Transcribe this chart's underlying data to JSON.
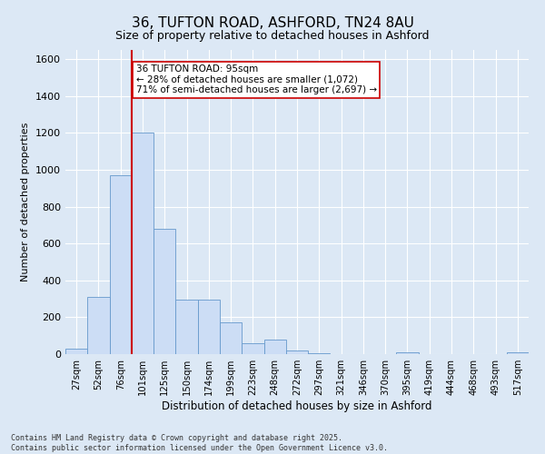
{
  "title_line1": "36, TUFTON ROAD, ASHFORD, TN24 8AU",
  "title_line2": "Size of property relative to detached houses in Ashford",
  "xlabel": "Distribution of detached houses by size in Ashford",
  "ylabel": "Number of detached properties",
  "categories": [
    "27sqm",
    "52sqm",
    "76sqm",
    "101sqm",
    "125sqm",
    "150sqm",
    "174sqm",
    "199sqm",
    "223sqm",
    "248sqm",
    "272sqm",
    "297sqm",
    "321sqm",
    "346sqm",
    "370sqm",
    "395sqm",
    "419sqm",
    "444sqm",
    "468sqm",
    "493sqm",
    "517sqm"
  ],
  "values": [
    30,
    310,
    970,
    1200,
    680,
    295,
    295,
    170,
    60,
    80,
    22,
    5,
    2,
    2,
    2,
    8,
    2,
    2,
    2,
    2,
    8
  ],
  "bar_color": "#ccddf5",
  "bar_edge_color": "#6699cc",
  "vline_color": "#cc0000",
  "vline_x_index": 3.0,
  "annotation_text": "36 TUFTON ROAD: 95sqm\n← 28% of detached houses are smaller (1,072)\n71% of semi-detached houses are larger (2,697) →",
  "annotation_box_color": "#ffffff",
  "annotation_box_edge": "#cc0000",
  "ylim": [
    0,
    1650
  ],
  "yticks": [
    0,
    200,
    400,
    600,
    800,
    1000,
    1200,
    1400,
    1600
  ],
  "background_color": "#dce8f5",
  "grid_color": "#ffffff",
  "footer_line1": "Contains HM Land Registry data © Crown copyright and database right 2025.",
  "footer_line2": "Contains public sector information licensed under the Open Government Licence v3.0."
}
